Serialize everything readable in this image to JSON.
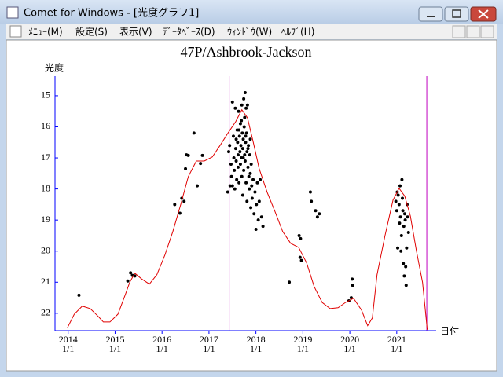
{
  "window": {
    "title": "Comet for Windows - [光度グラフ1]",
    "menu": [
      "ﾒﾆｭｰ(M)",
      "設定(S)",
      "表示(V)",
      "ﾃﾞｰﾀﾍﾞｰｽ(D)",
      "ｳｨﾝﾄﾞｳ(W)",
      "ﾍﾙﾌﾟ(H)"
    ]
  },
  "chart_data": {
    "type": "scatter",
    "title": "47P/Ashbrook-Jackson",
    "y_label": "光度",
    "x_label": "日付",
    "xlim": [
      2013.72,
      2021.84
    ],
    "ylim": [
      22.56,
      14.37
    ],
    "xticks": [
      {
        "value": 2014,
        "label": "2014\n1/1"
      },
      {
        "value": 2015,
        "label": "2015\n1/1"
      },
      {
        "value": 2016,
        "label": "2016\n1/1"
      },
      {
        "value": 2017,
        "label": "2017\n1/1"
      },
      {
        "value": 2018,
        "label": "2018\n1/1"
      },
      {
        "value": 2019,
        "label": "2019\n1/1"
      },
      {
        "value": 2020,
        "label": "2020\n1/1"
      },
      {
        "value": 2021,
        "label": "2021\n1/1"
      }
    ],
    "yticks": [
      15,
      16,
      17,
      18,
      19,
      20,
      21,
      22
    ],
    "axis_color": "#0000ff",
    "vlines": {
      "color": "#c000c0",
      "x": [
        2017.43,
        2021.64
      ]
    },
    "series": [
      {
        "color": "#000000",
        "x": [
          2014.23,
          2015.27,
          2015.33,
          2015.37,
          2015.42,
          2016.27,
          2016.38,
          2016.42,
          2016.47,
          2016.5,
          2016.52,
          2016.56,
          2016.68,
          2016.75,
          2016.82,
          2016.86,
          2017.4,
          2017.42,
          2017.44,
          2017.47,
          2017.48,
          2017.5,
          2017.5,
          2017.52,
          2017.53,
          2017.54,
          2017.55,
          2017.56,
          2017.57,
          2017.58,
          2017.59,
          2017.6,
          2017.61,
          2017.62,
          2017.62,
          2017.63,
          2017.64,
          2017.65,
          2017.66,
          2017.67,
          2017.67,
          2017.68,
          2017.69,
          2017.7,
          2017.7,
          2017.71,
          2017.72,
          2017.72,
          2017.73,
          2017.74,
          2017.74,
          2017.75,
          2017.76,
          2017.76,
          2017.77,
          2017.77,
          2017.78,
          2017.79,
          2017.79,
          2017.8,
          2017.81,
          2017.81,
          2017.82,
          2017.83,
          2017.84,
          2017.85,
          2017.86,
          2017.87,
          2017.88,
          2017.89,
          2017.9,
          2017.91,
          2017.92,
          2017.94,
          2017.96,
          2017.98,
          2018.0,
          2018.01,
          2018.03,
          2018.05,
          2018.07,
          2018.09,
          2018.12,
          2018.15,
          2017.45,
          2017.58,
          2017.64,
          2017.69,
          2017.73,
          2017.78,
          2017.83,
          2017.88,
          2018.71,
          2018.92,
          2018.95,
          2018.94,
          2018.97,
          2019.16,
          2019.18,
          2019.27,
          2019.31,
          2019.35,
          2019.98,
          2020.03,
          2020.05,
          2020.06,
          2020.98,
          2021.0,
          2021.01,
          2021.02,
          2021.03,
          2021.05,
          2021.06,
          2021.07,
          2021.08,
          2021.09,
          2021.1,
          2021.11,
          2021.12,
          2021.13,
          2021.14,
          2021.15,
          2021.16,
          2021.17,
          2021.18,
          2021.19,
          2021.2,
          2021.21,
          2021.22,
          2021.23,
          2021.25
        ],
        "values": [
          21.42,
          20.96,
          20.7,
          20.78,
          20.8,
          18.5,
          18.78,
          18.3,
          18.4,
          17.35,
          16.9,
          16.92,
          16.2,
          17.9,
          17.18,
          16.92,
          18.1,
          16.8,
          16.6,
          17.2,
          17.6,
          15.2,
          17.9,
          16.3,
          17.0,
          17.4,
          18.0,
          15.4,
          16.7,
          17.1,
          17.7,
          16.1,
          16.5,
          16.9,
          17.3,
          15.5,
          17.8,
          16.3,
          16.8,
          15.9,
          17.2,
          16.6,
          17.0,
          15.3,
          17.6,
          16.2,
          16.7,
          18.2,
          16.4,
          15.1,
          17.4,
          16.0,
          16.9,
          15.7,
          17.1,
          14.9,
          16.5,
          17.8,
          15.4,
          16.2,
          16.8,
          18.4,
          15.3,
          17.3,
          16.6,
          17.6,
          18.0,
          16.9,
          17.5,
          18.6,
          17.2,
          17.9,
          18.3,
          17.7,
          18.8,
          18.1,
          19.3,
          18.5,
          17.8,
          19.0,
          18.4,
          17.7,
          18.9,
          19.2,
          17.9,
          16.4,
          16.1,
          15.8,
          17.0,
          16.3,
          16.7,
          16.4,
          21.0,
          19.5,
          19.6,
          20.2,
          20.3,
          18.1,
          18.4,
          18.7,
          18.9,
          18.8,
          21.6,
          21.5,
          20.9,
          21.1,
          18.4,
          18.7,
          18.1,
          19.9,
          18.2,
          18.5,
          19.1,
          17.9,
          18.9,
          20.0,
          19.5,
          17.7,
          18.3,
          18.7,
          20.4,
          19.2,
          20.8,
          18.8,
          19.0,
          20.5,
          21.1,
          19.9,
          18.5,
          18.9,
          19.4
        ]
      },
      {
        "color": "#e00000",
        "line": true,
        "x": [
          2013.98,
          2014.13,
          2014.3,
          2014.47,
          2014.64,
          2014.75,
          2014.89,
          2015.06,
          2015.22,
          2015.31,
          2015.42,
          2015.56,
          2015.73,
          2015.89,
          2016.06,
          2016.23,
          2016.4,
          2016.56,
          2016.73,
          2016.9,
          2017.07,
          2017.24,
          2017.4,
          2017.57,
          2017.7,
          2017.82,
          2017.94,
          2018.07,
          2018.24,
          2018.41,
          2018.57,
          2018.74,
          2018.91,
          2019.08,
          2019.24,
          2019.41,
          2019.58,
          2019.75,
          2019.91,
          2020.08,
          2020.25,
          2020.38,
          2020.48,
          2020.58,
          2020.75,
          2020.92,
          2021.05,
          2021.17,
          2021.29,
          2021.42,
          2021.55,
          2021.65
        ],
        "values": [
          22.48,
          22.03,
          21.77,
          21.85,
          22.1,
          22.28,
          22.28,
          22.03,
          21.39,
          21.01,
          20.71,
          20.89,
          21.06,
          20.76,
          20.13,
          19.37,
          18.49,
          17.6,
          17.1,
          17.1,
          16.97,
          16.59,
          16.21,
          15.83,
          15.45,
          15.71,
          16.47,
          17.35,
          18.11,
          18.74,
          19.37,
          19.75,
          19.88,
          20.38,
          21.14,
          21.65,
          21.85,
          21.82,
          21.65,
          21.52,
          21.9,
          22.4,
          22.15,
          20.76,
          19.5,
          18.36,
          17.98,
          18.23,
          18.87,
          20.0,
          21.01,
          22.53
        ]
      }
    ]
  }
}
